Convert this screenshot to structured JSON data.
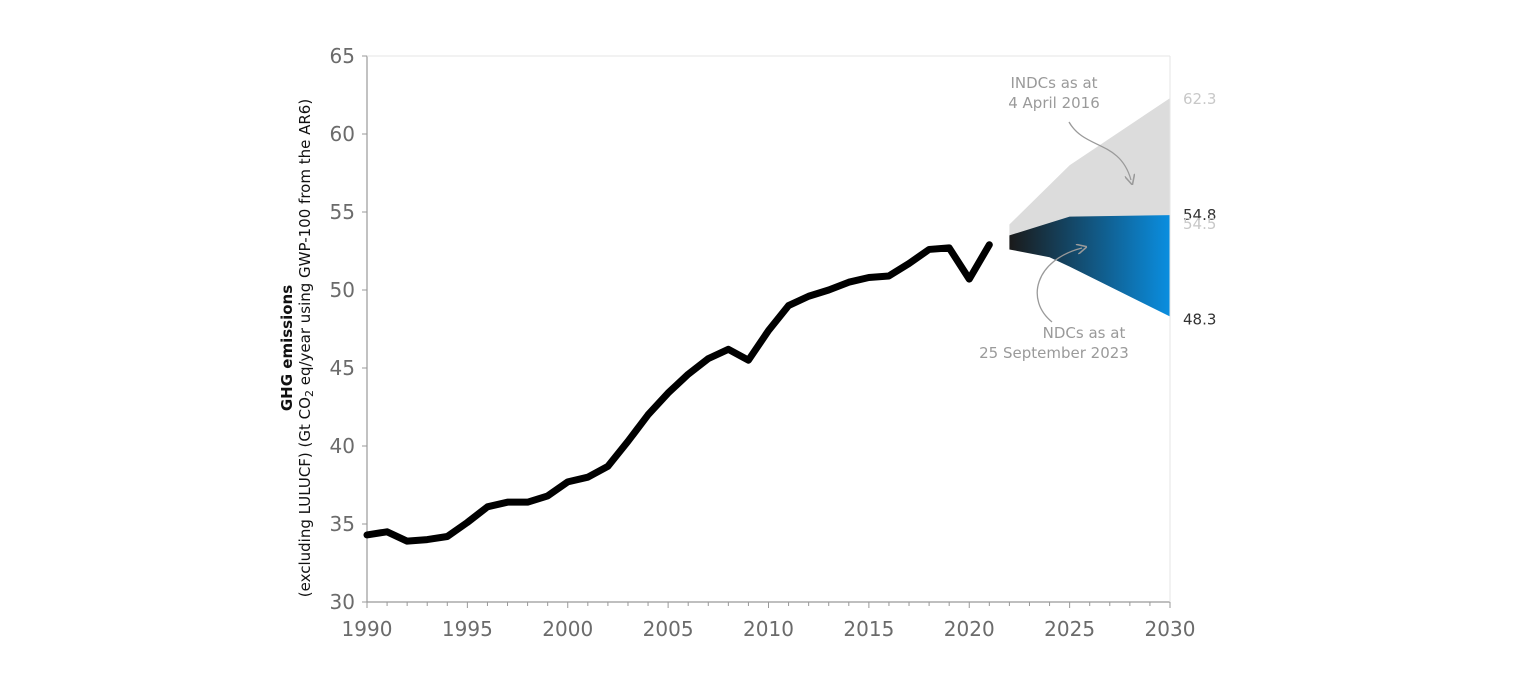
{
  "chart_data": {
    "type": "line",
    "title": "",
    "ylabel_line1": "GHG emissions",
    "ylabel_line2_pre": "(excluding LULUCF) (Gt CO",
    "ylabel_line2_sub": "2",
    "ylabel_line2_post": " eq/year using GWP-100 from the AR6)",
    "xlim": [
      1990,
      2030
    ],
    "ylim": [
      30,
      65
    ],
    "x_ticks": [
      1990,
      1995,
      2000,
      2005,
      2010,
      2015,
      2020,
      2025,
      2030
    ],
    "y_ticks": [
      30,
      35,
      40,
      45,
      50,
      55,
      60,
      65
    ],
    "grid": false,
    "series": [
      {
        "type": "line",
        "color": "#000000",
        "x": [
          1990,
          1991,
          1992,
          1993,
          1994,
          1995,
          1996,
          1997,
          1998,
          1999,
          2000,
          2001,
          2002,
          2003,
          2004,
          2005,
          2006,
          2007,
          2008,
          2009,
          2010,
          2011,
          2012,
          2013,
          2014,
          2015,
          2016,
          2017,
          2018,
          2019,
          2020,
          2021
        ],
        "y": [
          34.3,
          34.5,
          33.9,
          34.0,
          34.2,
          35.1,
          36.1,
          36.4,
          36.4,
          36.8,
          37.7,
          38.0,
          38.7,
          40.3,
          42.0,
          43.4,
          44.6,
          45.6,
          46.2,
          45.5,
          47.4,
          49.0,
          49.6,
          50.0,
          50.5,
          50.8,
          50.9,
          51.7,
          52.6,
          52.7,
          50.7,
          52.9
        ]
      }
    ],
    "bands": [
      {
        "name": "INDCs as at 4 April 2016",
        "color": "#dcdcdc",
        "x": [
          2022,
          2025,
          2030
        ],
        "upper": [
          54.2,
          58.0,
          62.3
        ],
        "lower": [
          53.3,
          54.6,
          54.5
        ]
      },
      {
        "name": "NDCs as at 25 September 2023",
        "color_start": "#1a1a1a",
        "color_end": "#0a8ee0",
        "x": [
          2022,
          2024,
          2025,
          2030
        ],
        "upper": [
          53.5,
          54.3,
          54.7,
          54.8
        ],
        "lower": [
          52.6,
          52.1,
          51.5,
          48.3
        ]
      }
    ],
    "annotations": [
      {
        "line1": "INDCs as at",
        "line2": "4 April 2016"
      },
      {
        "line1": "NDCs as at",
        "line2": "25 September 2023"
      }
    ],
    "end_labels": [
      {
        "text": "62.3",
        "value": 62.3,
        "color": "#c8c8c8"
      },
      {
        "text": "54.8",
        "value": 54.8,
        "color": "#333333"
      },
      {
        "text": "54.5",
        "value": 54.5,
        "color": "#c8c8c8"
      },
      {
        "text": "48.3",
        "value": 48.3,
        "color": "#333333"
      }
    ],
    "axis_color": "#cccccc",
    "tick_label_color": "#6b6b6b"
  }
}
